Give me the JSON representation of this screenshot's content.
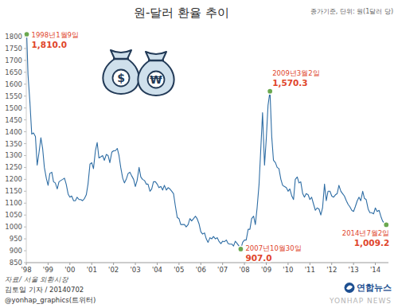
{
  "chart_data": {
    "type": "line",
    "title": "원-달러 환율 추이",
    "subtitle": "종가기준, 단위: 원(1달러 당)",
    "icons": [
      "$",
      "₩"
    ],
    "x": [
      1998.02,
      1998.08,
      1998.17,
      1998.25,
      1998.33,
      1998.42,
      1998.5,
      1998.58,
      1998.67,
      1998.75,
      1998.83,
      1998.92,
      1999,
      1999.08,
      1999.17,
      1999.25,
      1999.33,
      1999.42,
      1999.5,
      1999.58,
      1999.67,
      1999.75,
      1999.83,
      1999.92,
      2000,
      2000.08,
      2000.17,
      2000.25,
      2000.33,
      2000.42,
      2000.5,
      2000.58,
      2000.67,
      2000.75,
      2000.83,
      2000.92,
      2001,
      2001.08,
      2001.17,
      2001.25,
      2001.33,
      2001.42,
      2001.5,
      2001.58,
      2001.67,
      2001.75,
      2001.83,
      2001.92,
      2002,
      2002.08,
      2002.17,
      2002.25,
      2002.33,
      2002.42,
      2002.5,
      2002.58,
      2002.67,
      2002.75,
      2002.83,
      2002.92,
      2003,
      2003.08,
      2003.17,
      2003.25,
      2003.33,
      2003.42,
      2003.5,
      2003.58,
      2003.67,
      2003.75,
      2003.83,
      2003.92,
      2004,
      2004.08,
      2004.17,
      2004.25,
      2004.33,
      2004.42,
      2004.5,
      2004.58,
      2004.67,
      2004.75,
      2004.83,
      2004.92,
      2005,
      2005.08,
      2005.17,
      2005.25,
      2005.33,
      2005.42,
      2005.5,
      2005.58,
      2005.67,
      2005.75,
      2005.83,
      2005.92,
      2006,
      2006.08,
      2006.17,
      2006.25,
      2006.33,
      2006.42,
      2006.5,
      2006.58,
      2006.67,
      2006.75,
      2006.83,
      2006.92,
      2007,
      2007.08,
      2007.17,
      2007.25,
      2007.33,
      2007.42,
      2007.5,
      2007.58,
      2007.67,
      2007.75,
      2007.83,
      2007.92,
      2008,
      2008.08,
      2008.17,
      2008.25,
      2008.33,
      2008.42,
      2008.5,
      2008.58,
      2008.67,
      2008.75,
      2008.83,
      2008.92,
      2009,
      2009.08,
      2009.17,
      2009.25,
      2009.33,
      2009.42,
      2009.5,
      2009.58,
      2009.67,
      2009.75,
      2009.83,
      2009.92,
      2010,
      2010.08,
      2010.17,
      2010.25,
      2010.33,
      2010.42,
      2010.5,
      2010.58,
      2010.67,
      2010.75,
      2010.83,
      2010.92,
      2011,
      2011.08,
      2011.17,
      2011.25,
      2011.33,
      2011.42,
      2011.5,
      2011.58,
      2011.67,
      2011.75,
      2011.83,
      2011.92,
      2012,
      2012.08,
      2012.17,
      2012.25,
      2012.33,
      2012.42,
      2012.5,
      2012.58,
      2012.67,
      2012.75,
      2012.83,
      2012.92,
      2013,
      2013.08,
      2013.17,
      2013.25,
      2013.33,
      2013.42,
      2013.5,
      2013.58,
      2013.67,
      2013.75,
      2013.83,
      2013.92,
      2014,
      2014.08,
      2014.17,
      2014.25,
      2014.33,
      2014.42,
      2014.5
    ],
    "values": [
      1810,
      1640,
      1520,
      1390,
      1395,
      1380,
      1260,
      1310,
      1375,
      1330,
      1250,
      1204,
      1175,
      1225,
      1230,
      1190,
      1185,
      1160,
      1190,
      1195,
      1200,
      1205,
      1180,
      1138,
      1125,
      1130,
      1110,
      1110,
      1125,
      1115,
      1115,
      1110,
      1120,
      1135,
      1180,
      1264,
      1270,
      1245,
      1320,
      1355,
      1290,
      1295,
      1300,
      1280,
      1305,
      1300,
      1270,
      1314,
      1320,
      1320,
      1330,
      1300,
      1250,
      1205,
      1185,
      1200,
      1225,
      1230,
      1215,
      1200,
      1170,
      1195,
      1250,
      1210,
      1200,
      1195,
      1180,
      1180,
      1150,
      1160,
      1190,
      1190,
      1180,
      1165,
      1170,
      1155,
      1175,
      1155,
      1165,
      1160,
      1150,
      1140,
      1090,
      1040,
      1035,
      1010,
      1010,
      1010,
      1000,
      1010,
      1035,
      1025,
      1035,
      1045,
      1035,
      1013,
      980,
      970,
      975,
      950,
      935,
      955,
      950,
      960,
      950,
      955,
      940,
      930,
      940,
      938,
      945,
      930,
      928,
      928,
      920,
      940,
      930,
      920,
      907,
      936,
      945,
      945,
      990,
      990,
      1035,
      1045,
      1010,
      1080,
      1180,
      1330,
      1480,
      1260,
      1370,
      1510,
      1570.3,
      1380,
      1280,
      1270,
      1250,
      1245,
      1200,
      1175,
      1170,
      1165,
      1150,
      1160,
      1130,
      1115,
      1200,
      1210,
      1185,
      1190,
      1140,
      1125,
      1140,
      1135,
      1115,
      1125,
      1095,
      1070,
      1080,
      1075,
      1050,
      1080,
      1180,
      1110,
      1150,
      1150,
      1130,
      1125,
      1135,
      1140,
      1175,
      1150,
      1140,
      1130,
      1110,
      1095,
      1085,
      1070,
      1065,
      1085,
      1110,
      1125,
      1110,
      1150,
      1120,
      1115,
      1075,
      1060,
      1060,
      1055,
      1080,
      1065,
      1070,
      1045,
      1025,
      1015,
      1009.2
    ],
    "color": "#2e6da4",
    "xlim": [
      1998,
      2014.6
    ],
    "xticks": [
      {
        "value": 1998,
        "label": "'98"
      },
      {
        "value": 1999,
        "label": "'99"
      },
      {
        "value": 2000,
        "label": "'00"
      },
      {
        "value": 2001,
        "label": "'01"
      },
      {
        "value": 2002,
        "label": "'02"
      },
      {
        "value": 2003,
        "label": "'03"
      },
      {
        "value": 2004,
        "label": "'04"
      },
      {
        "value": 2005,
        "label": "'05"
      },
      {
        "value": 2006,
        "label": "'06"
      },
      {
        "value": 2007,
        "label": "'07"
      },
      {
        "value": 2008,
        "label": "'08"
      },
      {
        "value": 2009,
        "label": "'09"
      },
      {
        "value": 2010,
        "label": "'10"
      },
      {
        "value": 2011,
        "label": "'11"
      },
      {
        "value": 2012,
        "label": "'12"
      },
      {
        "value": 2013,
        "label": "'13"
      },
      {
        "value": 2014,
        "label": "'14"
      }
    ],
    "ylim": [
      850,
      1820
    ],
    "yticks": [
      850,
      900,
      950,
      1000,
      1050,
      1100,
      1150,
      1200,
      1250,
      1300,
      1350,
      1400,
      1450,
      1500,
      1550,
      1600,
      1650,
      1700,
      1750,
      1800
    ],
    "grid": false,
    "annotations": [
      {
        "x": 1998.02,
        "value": 1810.0,
        "date": "1998년1월9일",
        "label": "1,810.0"
      },
      {
        "x": 2009.17,
        "value": 1570.3,
        "date": "2009년3월2일",
        "label": "1,570.3"
      },
      {
        "x": 2007.83,
        "value": 907.0,
        "date": "2007년10월30일",
        "label": "907.0"
      },
      {
        "x": 2014.5,
        "value": 1009.2,
        "date": "2014년7월2일",
        "label": "1,009.2"
      }
    ],
    "source": "자료/ 서울 외환시장",
    "credits": [
      "김토일 기자 / 20140702",
      "@yonhap_graphics(트위터)"
    ],
    "logo": "연합뉴스",
    "watermark": "YONHAP NEWS"
  }
}
